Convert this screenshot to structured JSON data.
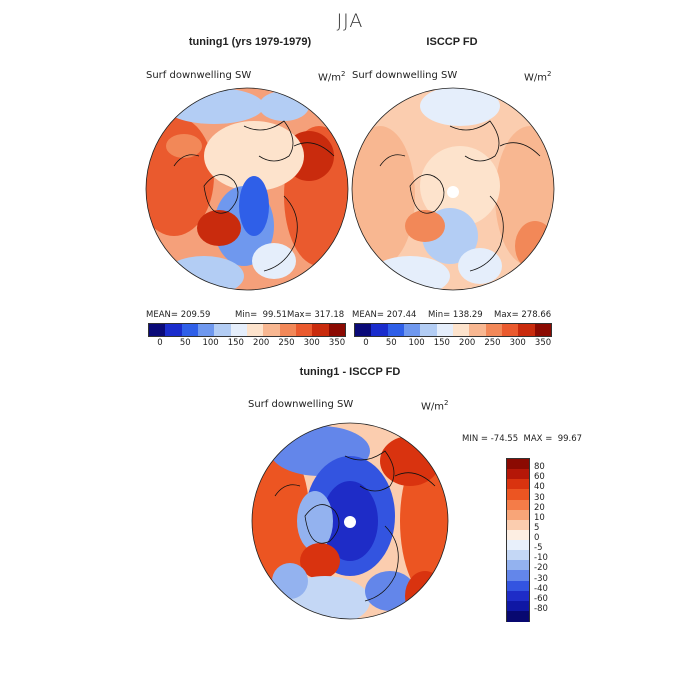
{
  "figure": {
    "season_title": "JJA"
  },
  "panels": [
    {
      "title": "tuning1 (yrs 1979-1979)",
      "variable": "Surf downwelling SW",
      "units": "W/m",
      "units_sup": "2",
      "mean_label": "MEAN= 209.59",
      "min_label": "Min=  99.51",
      "max_label": "Max= 317.18",
      "colorbar_ticks": [
        "0",
        "50",
        "100",
        "150",
        "200",
        "250",
        "300",
        "350"
      ]
    },
    {
      "title": "ISCCP FD",
      "variable": "Surf downwelling SW",
      "units": "W/m",
      "units_sup": "2",
      "mean_label": "MEAN= 207.44",
      "min_label": "Min= 138.29",
      "max_label": "Max= 278.66",
      "colorbar_ticks": [
        "0",
        "50",
        "100",
        "150",
        "200",
        "250",
        "300",
        "350"
      ]
    },
    {
      "title": "tuning1 - ISCCP FD",
      "variable": "Surf downwelling SW",
      "units": "W/m",
      "units_sup": "2",
      "minmax_label": "MIN = -74.55  MAX =  99.67",
      "colorbar_ticks": [
        "80",
        "60",
        "40",
        "30",
        "20",
        "10",
        "5",
        "0",
        "-5",
        "-10",
        "-20",
        "-30",
        "-40",
        "-60",
        "-80"
      ]
    }
  ],
  "colors": {
    "abs_scale": [
      "#0a0a78",
      "#1a2ccc",
      "#2f5fe8",
      "#6f98ee",
      "#b3cdf4",
      "#e5eefb",
      "#fde3cc",
      "#f8b791",
      "#f28858",
      "#ea5a2e",
      "#c92b0d",
      "#8b0a02"
    ],
    "diff_scale": [
      "#8b0a02",
      "#b51708",
      "#d9330f",
      "#ec5522",
      "#f47c48",
      "#f8a578",
      "#fbcdaf",
      "#fdeee2",
      "#e8f0fb",
      "#c4d7f5",
      "#93b2ef",
      "#6386ea",
      "#3354e0",
      "#1e2cc7",
      "#0f17a4",
      "#080870"
    ]
  }
}
